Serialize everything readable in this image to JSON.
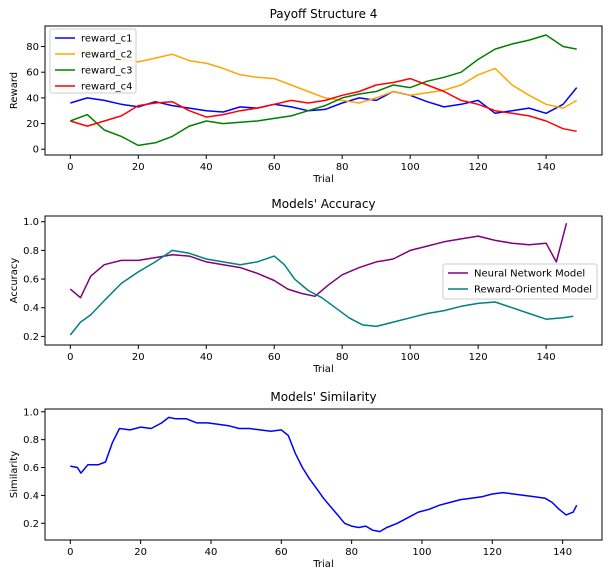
{
  "chart_data": [
    {
      "type": "line",
      "title": "Payoff Structure 4",
      "xlabel": "Trial",
      "ylabel": "Reward",
      "xlim": [
        -7.45,
        156.45
      ],
      "ylim": [
        -4.5,
        96
      ],
      "xticks": [
        0,
        20,
        40,
        60,
        80,
        100,
        120,
        140
      ],
      "yticks": [
        0,
        20,
        40,
        60,
        80
      ],
      "legend": "top-left",
      "series": [
        {
          "name": "reward_c1",
          "color": "#0000ff",
          "points": [
            [
              0,
              36
            ],
            [
              5,
              40
            ],
            [
              10,
              38
            ],
            [
              15,
              35
            ],
            [
              20,
              33
            ],
            [
              25,
              37
            ],
            [
              30,
              34
            ],
            [
              35,
              32
            ],
            [
              40,
              30
            ],
            [
              45,
              29
            ],
            [
              50,
              33
            ],
            [
              55,
              32
            ],
            [
              60,
              35
            ],
            [
              65,
              33
            ],
            [
              70,
              30
            ],
            [
              75,
              31
            ],
            [
              80,
              36
            ],
            [
              85,
              40
            ],
            [
              90,
              38
            ],
            [
              95,
              45
            ],
            [
              100,
              42
            ],
            [
              105,
              37
            ],
            [
              110,
              33
            ],
            [
              115,
              35
            ],
            [
              120,
              38
            ],
            [
              125,
              28
            ],
            [
              130,
              30
            ],
            [
              135,
              32
            ],
            [
              140,
              28
            ],
            [
              145,
              35
            ],
            [
              149,
              48
            ]
          ]
        },
        {
          "name": "reward_c2",
          "color": "#ffa500",
          "points": [
            [
              0,
              74
            ],
            [
              5,
              77
            ],
            [
              10,
              72
            ],
            [
              15,
              70
            ],
            [
              20,
              68
            ],
            [
              25,
              71
            ],
            [
              30,
              74
            ],
            [
              35,
              69
            ],
            [
              40,
              67
            ],
            [
              45,
              63
            ],
            [
              50,
              58
            ],
            [
              55,
              56
            ],
            [
              60,
              55
            ],
            [
              65,
              50
            ],
            [
              70,
              45
            ],
            [
              75,
              40
            ],
            [
              80,
              38
            ],
            [
              85,
              36
            ],
            [
              90,
              40
            ],
            [
              95,
              45
            ],
            [
              100,
              42
            ],
            [
              105,
              44
            ],
            [
              110,
              46
            ],
            [
              115,
              50
            ],
            [
              120,
              58
            ],
            [
              125,
              63
            ],
            [
              130,
              50
            ],
            [
              135,
              42
            ],
            [
              140,
              35
            ],
            [
              145,
              32
            ],
            [
              149,
              38
            ]
          ]
        },
        {
          "name": "reward_c3",
          "color": "#008000",
          "points": [
            [
              0,
              22
            ],
            [
              5,
              27
            ],
            [
              10,
              15
            ],
            [
              15,
              10
            ],
            [
              20,
              3
            ],
            [
              25,
              5
            ],
            [
              30,
              10
            ],
            [
              35,
              18
            ],
            [
              40,
              22
            ],
            [
              45,
              20
            ],
            [
              50,
              21
            ],
            [
              55,
              22
            ],
            [
              60,
              24
            ],
            [
              65,
              26
            ],
            [
              70,
              30
            ],
            [
              75,
              34
            ],
            [
              80,
              40
            ],
            [
              85,
              43
            ],
            [
              90,
              45
            ],
            [
              95,
              50
            ],
            [
              100,
              48
            ],
            [
              105,
              53
            ],
            [
              110,
              56
            ],
            [
              115,
              60
            ],
            [
              120,
              70
            ],
            [
              125,
              78
            ],
            [
              130,
              82
            ],
            [
              135,
              85
            ],
            [
              140,
              89
            ],
            [
              145,
              80
            ],
            [
              149,
              78
            ]
          ]
        },
        {
          "name": "reward_c4",
          "color": "#ff0000",
          "points": [
            [
              0,
              22
            ],
            [
              5,
              18
            ],
            [
              10,
              22
            ],
            [
              15,
              26
            ],
            [
              20,
              34
            ],
            [
              25,
              36
            ],
            [
              30,
              37
            ],
            [
              35,
              30
            ],
            [
              40,
              25
            ],
            [
              45,
              27
            ],
            [
              50,
              30
            ],
            [
              55,
              32
            ],
            [
              60,
              35
            ],
            [
              65,
              38
            ],
            [
              70,
              36
            ],
            [
              75,
              38
            ],
            [
              80,
              42
            ],
            [
              85,
              45
            ],
            [
              90,
              50
            ],
            [
              95,
              52
            ],
            [
              100,
              55
            ],
            [
              105,
              50
            ],
            [
              110,
              45
            ],
            [
              115,
              38
            ],
            [
              120,
              35
            ],
            [
              125,
              30
            ],
            [
              130,
              28
            ],
            [
              135,
              26
            ],
            [
              140,
              22
            ],
            [
              145,
              16
            ],
            [
              149,
              14
            ]
          ]
        }
      ]
    },
    {
      "type": "line",
      "title": "Models' Accuracy",
      "xlabel": "Trial",
      "ylabel": "Accuracy",
      "xlim": [
        -7.45,
        156.45
      ],
      "ylim": [
        0.14,
        1.04
      ],
      "xticks": [
        0,
        20,
        40,
        60,
        80,
        100,
        120,
        140
      ],
      "yticks": [
        0.2,
        0.4,
        0.6,
        0.8,
        1.0
      ],
      "ytick_labels": [
        "0.2",
        "0.4",
        "0.6",
        "0.8",
        "1.0"
      ],
      "legend": "center-right",
      "series": [
        {
          "name": "Neural Network Model",
          "color": "#800080",
          "points": [
            [
              0,
              0.53
            ],
            [
              3,
              0.47
            ],
            [
              6,
              0.62
            ],
            [
              10,
              0.7
            ],
            [
              15,
              0.73
            ],
            [
              20,
              0.73
            ],
            [
              25,
              0.75
            ],
            [
              30,
              0.77
            ],
            [
              35,
              0.76
            ],
            [
              40,
              0.72
            ],
            [
              45,
              0.7
            ],
            [
              50,
              0.68
            ],
            [
              55,
              0.64
            ],
            [
              60,
              0.59
            ],
            [
              64,
              0.53
            ],
            [
              68,
              0.5
            ],
            [
              72,
              0.48
            ],
            [
              76,
              0.56
            ],
            [
              80,
              0.63
            ],
            [
              85,
              0.68
            ],
            [
              90,
              0.72
            ],
            [
              95,
              0.74
            ],
            [
              100,
              0.8
            ],
            [
              105,
              0.83
            ],
            [
              110,
              0.86
            ],
            [
              115,
              0.88
            ],
            [
              120,
              0.9
            ],
            [
              125,
              0.87
            ],
            [
              130,
              0.85
            ],
            [
              135,
              0.84
            ],
            [
              140,
              0.85
            ],
            [
              143,
              0.72
            ],
            [
              146,
              0.99
            ]
          ]
        },
        {
          "name": "Reward-Oriented Model",
          "color": "#008080",
          "points": [
            [
              0,
              0.21
            ],
            [
              3,
              0.3
            ],
            [
              6,
              0.35
            ],
            [
              10,
              0.45
            ],
            [
              15,
              0.57
            ],
            [
              20,
              0.65
            ],
            [
              25,
              0.72
            ],
            [
              30,
              0.8
            ],
            [
              35,
              0.78
            ],
            [
              40,
              0.74
            ],
            [
              45,
              0.72
            ],
            [
              50,
              0.7
            ],
            [
              55,
              0.72
            ],
            [
              60,
              0.76
            ],
            [
              63,
              0.7
            ],
            [
              66,
              0.6
            ],
            [
              70,
              0.52
            ],
            [
              74,
              0.47
            ],
            [
              78,
              0.4
            ],
            [
              82,
              0.33
            ],
            [
              86,
              0.28
            ],
            [
              90,
              0.27
            ],
            [
              95,
              0.3
            ],
            [
              100,
              0.33
            ],
            [
              105,
              0.36
            ],
            [
              110,
              0.38
            ],
            [
              115,
              0.41
            ],
            [
              120,
              0.43
            ],
            [
              125,
              0.44
            ],
            [
              130,
              0.4
            ],
            [
              135,
              0.36
            ],
            [
              140,
              0.32
            ],
            [
              145,
              0.33
            ],
            [
              148,
              0.34
            ]
          ]
        }
      ]
    },
    {
      "type": "line",
      "title": "Models' Similarity",
      "xlabel": "Trial",
      "ylabel": "Similarity",
      "xlim": [
        -7.2,
        151.2
      ],
      "ylim": [
        0.08,
        1.02
      ],
      "xticks": [
        0,
        20,
        40,
        60,
        80,
        100,
        120,
        140
      ],
      "yticks": [
        0.2,
        0.4,
        0.6,
        0.8,
        1.0
      ],
      "ytick_labels": [
        "0.2",
        "0.4",
        "0.6",
        "0.8",
        "1.0"
      ],
      "legend": "none",
      "series": [
        {
          "name": "",
          "color": "#0000ff",
          "points": [
            [
              0,
              0.61
            ],
            [
              2,
              0.6
            ],
            [
              3,
              0.56
            ],
            [
              5,
              0.62
            ],
            [
              8,
              0.62
            ],
            [
              10,
              0.64
            ],
            [
              12,
              0.78
            ],
            [
              14,
              0.88
            ],
            [
              17,
              0.87
            ],
            [
              20,
              0.89
            ],
            [
              23,
              0.88
            ],
            [
              26,
              0.92
            ],
            [
              28,
              0.96
            ],
            [
              30,
              0.95
            ],
            [
              33,
              0.95
            ],
            [
              36,
              0.92
            ],
            [
              39,
              0.92
            ],
            [
              42,
              0.91
            ],
            [
              45,
              0.9
            ],
            [
              48,
              0.88
            ],
            [
              51,
              0.88
            ],
            [
              54,
              0.87
            ],
            [
              57,
              0.86
            ],
            [
              60,
              0.87
            ],
            [
              62,
              0.83
            ],
            [
              64,
              0.7
            ],
            [
              66,
              0.6
            ],
            [
              68,
              0.52
            ],
            [
              70,
              0.45
            ],
            [
              72,
              0.38
            ],
            [
              74,
              0.32
            ],
            [
              76,
              0.26
            ],
            [
              78,
              0.2
            ],
            [
              80,
              0.18
            ],
            [
              82,
              0.17
            ],
            [
              84,
              0.18
            ],
            [
              86,
              0.15
            ],
            [
              88,
              0.14
            ],
            [
              90,
              0.17
            ],
            [
              93,
              0.2
            ],
            [
              96,
              0.24
            ],
            [
              99,
              0.28
            ],
            [
              102,
              0.3
            ],
            [
              105,
              0.33
            ],
            [
              108,
              0.35
            ],
            [
              111,
              0.37
            ],
            [
              114,
              0.38
            ],
            [
              117,
              0.39
            ],
            [
              120,
              0.41
            ],
            [
              123,
              0.42
            ],
            [
              126,
              0.41
            ],
            [
              129,
              0.4
            ],
            [
              132,
              0.39
            ],
            [
              135,
              0.38
            ],
            [
              137,
              0.35
            ],
            [
              139,
              0.3
            ],
            [
              141,
              0.26
            ],
            [
              143,
              0.28
            ],
            [
              144,
              0.33
            ]
          ]
        }
      ]
    }
  ]
}
